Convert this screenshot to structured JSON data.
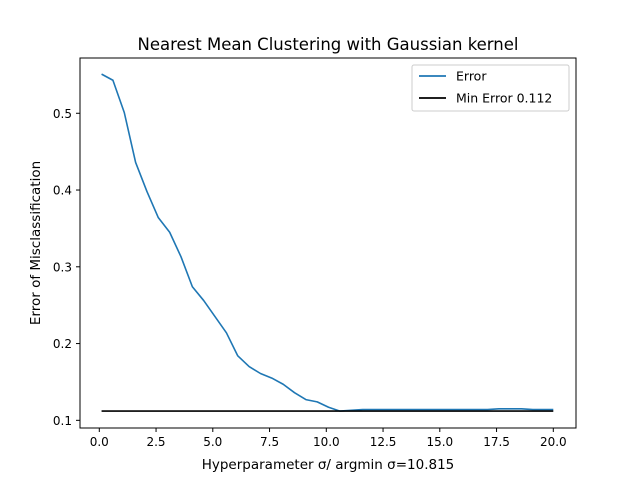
{
  "chart_data": {
    "type": "line",
    "title": "Nearest Mean Clustering with Gaussian kernel",
    "xlabel": "Hyperparameter σ/ argmin σ=10.815",
    "ylabel": "Error of Misclassification",
    "xlim": [
      -0.85,
      21.0
    ],
    "ylim": [
      0.09,
      0.572
    ],
    "xticks": [
      0.0,
      2.5,
      5.0,
      7.5,
      10.0,
      12.5,
      15.0,
      17.5,
      20.0
    ],
    "xtick_labels": [
      "0.0",
      "2.5",
      "5.0",
      "7.5",
      "10.0",
      "12.5",
      "15.0",
      "17.5",
      "20.0"
    ],
    "yticks": [
      0.1,
      0.2,
      0.3,
      0.4,
      0.5
    ],
    "ytick_labels": [
      "0.1",
      "0.2",
      "0.3",
      "0.4",
      "0.5"
    ],
    "grid": false,
    "legend_position": "top-right",
    "series": [
      {
        "name": "Error",
        "color": "#1f77b4",
        "style": "line",
        "x": [
          0.1,
          0.6,
          1.1,
          1.6,
          2.1,
          2.6,
          3.1,
          3.6,
          4.1,
          4.6,
          5.1,
          5.6,
          6.1,
          6.6,
          7.1,
          7.6,
          8.1,
          8.6,
          9.1,
          9.6,
          10.1,
          10.6,
          11.1,
          11.6,
          12.1,
          12.6,
          13.1,
          13.6,
          14.1,
          14.6,
          15.1,
          15.6,
          16.1,
          16.6,
          17.1,
          17.6,
          18.1,
          18.6,
          19.1,
          19.6,
          20.0
        ],
        "y": [
          0.551,
          0.543,
          0.501,
          0.436,
          0.398,
          0.364,
          0.345,
          0.313,
          0.274,
          0.256,
          0.235,
          0.214,
          0.184,
          0.17,
          0.161,
          0.155,
          0.147,
          0.136,
          0.127,
          0.124,
          0.117,
          0.112,
          0.113,
          0.114,
          0.114,
          0.114,
          0.114,
          0.114,
          0.114,
          0.114,
          0.114,
          0.114,
          0.114,
          0.114,
          0.114,
          0.115,
          0.115,
          0.115,
          0.114,
          0.114,
          0.114
        ]
      },
      {
        "name": "Min Error 0.112",
        "color": "#000000",
        "style": "hline",
        "x": [
          0.1,
          20.0
        ],
        "y": [
          0.112,
          0.112
        ]
      }
    ]
  }
}
